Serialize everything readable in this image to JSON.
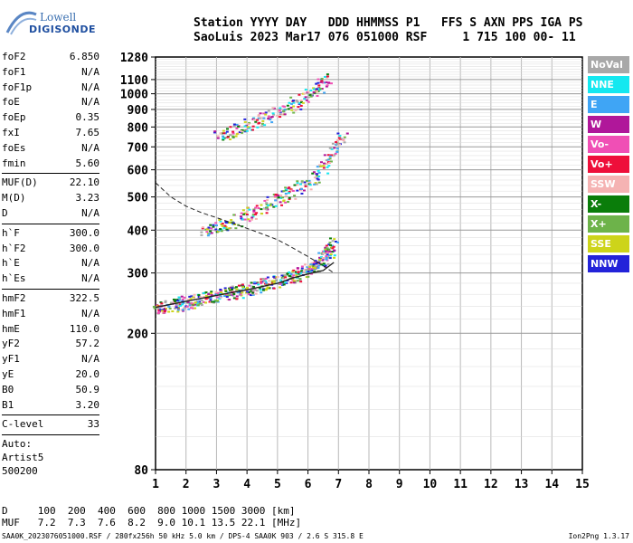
{
  "logo": {
    "line1": "Lowell",
    "line2": "DIGISONDE"
  },
  "header": {
    "line1": "Station YYYY DAY   DDD HHMMSS P1   FFS S AXN PPS IGA PS",
    "line2": "SaoLuis 2023 Mar17 076 051000 RSF     1 715 100 00- 11"
  },
  "params": [
    {
      "name": "foF2",
      "value": "6.850"
    },
    {
      "name": "foF1",
      "value": "N/A"
    },
    {
      "name": "foF1p",
      "value": "N/A"
    },
    {
      "name": "foE",
      "value": "N/A"
    },
    {
      "name": "foEp",
      "value": "0.35"
    },
    {
      "name": "fxI",
      "value": "7.65"
    },
    {
      "name": "foEs",
      "value": "N/A"
    },
    {
      "name": "fmin",
      "value": "5.60"
    },
    {
      "sep": true
    },
    {
      "name": "MUF(D)",
      "value": "22.10"
    },
    {
      "name": "M(D)",
      "value": "3.23"
    },
    {
      "name": "D",
      "value": "N/A"
    },
    {
      "sep": true
    },
    {
      "name": "h`F",
      "value": "300.0"
    },
    {
      "name": "h`F2",
      "value": "300.0"
    },
    {
      "name": "h`E",
      "value": "N/A"
    },
    {
      "name": "h`Es",
      "value": "N/A"
    },
    {
      "sep": true
    },
    {
      "name": "hmF2",
      "value": "322.5"
    },
    {
      "name": "hmF1",
      "value": "N/A"
    },
    {
      "name": "hmE",
      "value": "110.0"
    },
    {
      "name": "yF2",
      "value": "57.2"
    },
    {
      "name": "yF1",
      "value": "N/A"
    },
    {
      "name": "yE",
      "value": "20.0"
    },
    {
      "name": "B0",
      "value": "50.9"
    },
    {
      "name": "B1",
      "value": "3.20"
    },
    {
      "sep": true
    },
    {
      "name": "C-level",
      "value": "33"
    },
    {
      "sep": true
    },
    {
      "plain": "Auto:"
    },
    {
      "plain": "Artist5"
    },
    {
      "plain": "500200"
    }
  ],
  "distance_table": {
    "row_d": "D     100  200  400  600  800 1000 1500 3000 [km]",
    "row_muf": "MUF   7.2  7.3  7.6  8.2  9.0 10.1 13.5 22.1 [MHz]"
  },
  "footer": {
    "left": "SAA0K_2023076051000.RSF / 280fx256h 50 kHz 5.0 km / DPS-4 SAA0K 903 / 2.6 S 315.8 E",
    "right": "Ion2Png 1.3.17"
  },
  "legend": [
    {
      "label": "NoVal",
      "color": "#a8a8a8"
    },
    {
      "label": "NNE",
      "color": "#14e8f0"
    },
    {
      "label": "E",
      "color": "#3fa5f5"
    },
    {
      "label": "W",
      "color": "#b0179a"
    },
    {
      "label": "Vo-",
      "color": "#f04fb5"
    },
    {
      "label": "Vo+",
      "color": "#ee0f3a"
    },
    {
      "label": "SSW",
      "color": "#f5b3b3"
    },
    {
      "label": "X-",
      "color": "#0a7d0a"
    },
    {
      "label": "X+",
      "color": "#6db34a"
    },
    {
      "label": "SSE",
      "color": "#cdd41a"
    },
    {
      "label": "NNW",
      "color": "#2323d9"
    }
  ],
  "chart_data": {
    "type": "scatter",
    "description_axes": {
      "x": {
        "range": [
          1,
          15
        ],
        "ticks": [
          1,
          2,
          3,
          4,
          5,
          6,
          7,
          8,
          9,
          10,
          11,
          12,
          13,
          14,
          15
        ],
        "unit": "MHz"
      },
      "y": {
        "range": [
          80,
          1280
        ],
        "scale": "log",
        "ticks": [
          80,
          200,
          300,
          400,
          500,
          600,
          700,
          800,
          900,
          1000,
          1100,
          1280
        ],
        "unit": "km"
      }
    },
    "grid": true,
    "traces": [
      {
        "name": "F2 trace (O)",
        "points": [
          [
            1.0,
            238
          ],
          [
            1.5,
            242
          ],
          [
            2.0,
            247
          ],
          [
            2.5,
            252
          ],
          [
            3.0,
            258
          ],
          [
            3.5,
            264
          ],
          [
            4.0,
            270
          ],
          [
            4.5,
            277
          ],
          [
            5.0,
            285
          ],
          [
            5.5,
            295
          ],
          [
            6.0,
            308
          ],
          [
            6.3,
            320
          ],
          [
            6.6,
            340
          ],
          [
            6.8,
            370
          ]
        ]
      },
      {
        "name": "2nd hop",
        "points": [
          [
            2.5,
            400
          ],
          [
            3.0,
            410
          ],
          [
            3.5,
            425
          ],
          [
            4.0,
            445
          ],
          [
            4.5,
            470
          ],
          [
            5.0,
            495
          ],
          [
            5.5,
            520
          ],
          [
            6.0,
            555
          ],
          [
            6.5,
            610
          ],
          [
            6.9,
            700
          ],
          [
            7.1,
            760
          ]
        ]
      },
      {
        "name": "3rd hop",
        "points": [
          [
            3.0,
            760
          ],
          [
            3.5,
            785
          ],
          [
            4.0,
            810
          ],
          [
            4.5,
            845
          ],
          [
            5.0,
            885
          ],
          [
            5.5,
            935
          ],
          [
            6.0,
            1000
          ],
          [
            6.4,
            1060
          ],
          [
            6.6,
            1110
          ]
        ]
      },
      {
        "name": "Ne profile",
        "points": [
          [
            1.0,
            550
          ],
          [
            1.5,
            500
          ],
          [
            2.0,
            470
          ],
          [
            2.5,
            450
          ],
          [
            3.0,
            435
          ],
          [
            3.5,
            420
          ],
          [
            4.0,
            405
          ],
          [
            4.5,
            390
          ],
          [
            5.0,
            375
          ],
          [
            5.5,
            355
          ],
          [
            6.0,
            335
          ],
          [
            6.5,
            315
          ],
          [
            6.85,
            300
          ]
        ]
      },
      {
        "name": "Model curve",
        "points": [
          [
            1.0,
            238
          ],
          [
            2.0,
            248
          ],
          [
            3.0,
            258
          ],
          [
            4.0,
            268
          ],
          [
            5.0,
            280
          ],
          [
            5.5,
            290
          ],
          [
            6.0,
            298
          ],
          [
            6.5,
            305
          ],
          [
            6.85,
            322
          ]
        ]
      }
    ]
  }
}
